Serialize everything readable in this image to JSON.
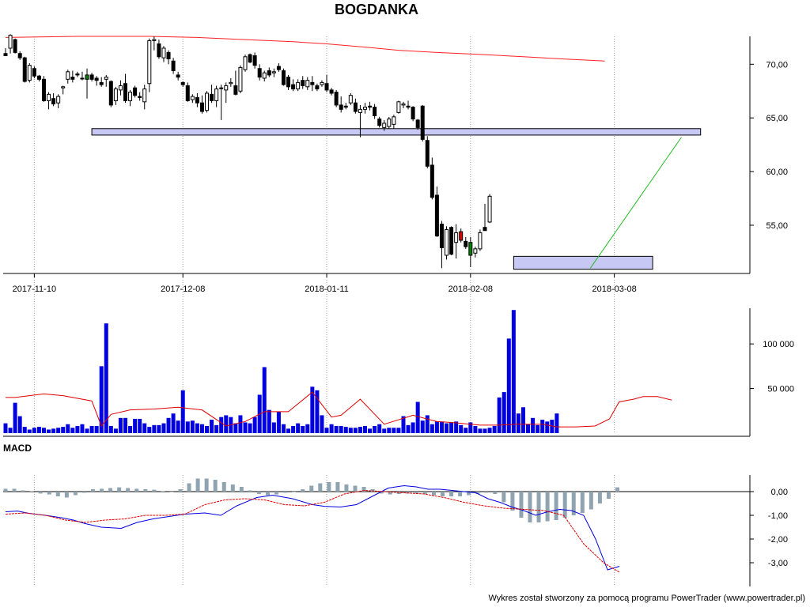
{
  "title": "BOGDANKA",
  "macd_label": "MACD",
  "footer": "Wykres został stworzony za pomocą programu PowerTrader (www.powertrader.pl)",
  "colors": {
    "up_body": "#ffffff",
    "down_body": "#000000",
    "red_candle": "#e00000",
    "green_candle": "#008000",
    "moving_average": "#ff2020",
    "volume_bar": "#0000e0",
    "volume_ma": "#e00000",
    "macd_line": "#0000e0",
    "signal_line": "#e00000",
    "histogram": "#8fa4b0",
    "zone_fill": "#c8c8f4",
    "trendline": "#22bb22"
  },
  "chart_data": [
    {
      "type": "candlestick",
      "name": "price",
      "x_tick_labels": [
        "2017-11-10",
        "2017-12-08",
        "2018-01-11",
        "2018-02-08",
        "2018-03-08"
      ],
      "x_tick_index": [
        6,
        37,
        67,
        97,
        127
      ],
      "y_tick_labels": [
        "70,00",
        "65,00",
        "60,00",
        "55,00"
      ],
      "y_ticks": [
        70,
        65,
        60,
        55
      ],
      "ylim": [
        50.8,
        72.6
      ],
      "grid": "vertical",
      "candles": [
        [
          71.0,
          71.5,
          70.8,
          70.8
        ],
        [
          71.5,
          72.8,
          71.0,
          72.7
        ],
        [
          72.3,
          72.4,
          71.0,
          71.1
        ],
        [
          71.0,
          71.2,
          70.4,
          70.6
        ],
        [
          70.6,
          70.7,
          68.3,
          68.4
        ],
        [
          68.5,
          70.1,
          68.3,
          69.9
        ],
        [
          69.6,
          69.8,
          68.7,
          68.9
        ],
        [
          68.9,
          69.0,
          68.4,
          68.6
        ],
        [
          68.6,
          68.9,
          66.5,
          66.6
        ],
        [
          66.6,
          67.4,
          65.8,
          67.2
        ],
        [
          66.8,
          67.3,
          66.1,
          66.3
        ],
        [
          66.4,
          67.2,
          65.9,
          67.0
        ],
        [
          67.8,
          68.0,
          67.2,
          67.9
        ],
        [
          68.6,
          69.5,
          68.2,
          69.3
        ],
        [
          68.8,
          69.4,
          68.3,
          68.6
        ],
        [
          69.1,
          69.3,
          68.8,
          69.0
        ],
        [
          68.7,
          69.3,
          68.5,
          68.7
        ],
        [
          68.6,
          69.6,
          66.8,
          69.0
        ],
        [
          69.0,
          69.2,
          68.4,
          68.6
        ],
        [
          68.7,
          68.9,
          68.0,
          68.5
        ],
        [
          68.3,
          68.8,
          67.9,
          68.1
        ],
        [
          68.6,
          69.0,
          67.9,
          68.8
        ],
        [
          68.4,
          68.5,
          66.0,
          66.2
        ],
        [
          66.6,
          67.9,
          66.2,
          67.7
        ],
        [
          67.6,
          68.5,
          67.1,
          68.0
        ],
        [
          68.2,
          69.1,
          66.4,
          66.6
        ],
        [
          66.6,
          67.6,
          66.1,
          67.4
        ],
        [
          67.8,
          68.0,
          66.9,
          67.1
        ],
        [
          67.0,
          67.4,
          66.6,
          66.9
        ],
        [
          66.5,
          68.1,
          65.8,
          67.7
        ],
        [
          68.2,
          72.4,
          67.4,
          72.2
        ],
        [
          72.2,
          72.6,
          71.3,
          72.3
        ],
        [
          71.9,
          72.3,
          70.5,
          70.7
        ],
        [
          70.6,
          71.7,
          70.2,
          71.5
        ],
        [
          71.1,
          71.3,
          70.0,
          70.5
        ],
        [
          70.3,
          70.6,
          69.1,
          69.4
        ],
        [
          69.0,
          69.3,
          68.5,
          68.8
        ],
        [
          68.3,
          68.4,
          67.9,
          68.1
        ],
        [
          68.0,
          68.3,
          66.5,
          66.6
        ],
        [
          66.7,
          67.2,
          66.4,
          67.0
        ],
        [
          66.9,
          67.3,
          66.0,
          66.4
        ],
        [
          66.4,
          67.1,
          65.4,
          65.6
        ],
        [
          65.7,
          67.5,
          65.5,
          67.3
        ],
        [
          67.2,
          68.1,
          66.4,
          66.6
        ],
        [
          66.6,
          68.0,
          66.0,
          67.7
        ],
        [
          67.8,
          68.1,
          64.8,
          67.8
        ],
        [
          67.6,
          68.3,
          66.4,
          68.0
        ],
        [
          68.2,
          68.7,
          67.9,
          68.3
        ],
        [
          68.0,
          69.4,
          67.1,
          67.2
        ],
        [
          67.5,
          69.9,
          67.3,
          69.7
        ],
        [
          69.5,
          70.9,
          69.3,
          70.7
        ],
        [
          70.9,
          71.0,
          70.1,
          70.2
        ],
        [
          70.8,
          71.1,
          69.6,
          69.9
        ],
        [
          69.6,
          70.0,
          68.5,
          68.8
        ],
        [
          68.7,
          69.4,
          68.4,
          69.2
        ],
        [
          69.4,
          69.7,
          68.8,
          69.0
        ],
        [
          69.2,
          69.6,
          68.8,
          69.3
        ],
        [
          69.8,
          70.1,
          69.3,
          69.5
        ],
        [
          69.4,
          69.6,
          68.0,
          68.1
        ],
        [
          68.8,
          69.0,
          67.6,
          67.9
        ],
        [
          68.1,
          68.6,
          67.5,
          67.7
        ],
        [
          67.7,
          68.6,
          67.5,
          68.3
        ],
        [
          68.5,
          68.9,
          67.7,
          68.0
        ],
        [
          67.9,
          68.8,
          67.6,
          68.5
        ],
        [
          68.3,
          68.9,
          67.5,
          68.1
        ],
        [
          68.0,
          68.2,
          67.5,
          67.7
        ],
        [
          68.1,
          68.5,
          67.9,
          68.3
        ],
        [
          68.2,
          69.0,
          67.4,
          67.6
        ],
        [
          67.6,
          67.8,
          67.1,
          67.3
        ],
        [
          67.4,
          67.6,
          66.0,
          66.2
        ],
        [
          66.2,
          67.0,
          65.5,
          65.8
        ],
        [
          66.1,
          66.4,
          65.8,
          66.0
        ],
        [
          66.4,
          67.3,
          66.2,
          67.1
        ],
        [
          66.4,
          66.8,
          65.4,
          65.6
        ],
        [
          65.5,
          66.2,
          63.2,
          65.8
        ],
        [
          65.8,
          66.4,
          65.4,
          66.0
        ],
        [
          66.1,
          66.5,
          65.7,
          66.0
        ],
        [
          66.0,
          66.3,
          64.9,
          65.2
        ],
        [
          64.9,
          65.1,
          64.1,
          64.3
        ],
        [
          64.1,
          64.8,
          63.8,
          64.5
        ],
        [
          64.2,
          65.1,
          64.0,
          64.9
        ],
        [
          64.4,
          65.3,
          64.0,
          65.1
        ],
        [
          65.5,
          66.6,
          65.4,
          66.5
        ],
        [
          66.2,
          66.5,
          65.9,
          66.3
        ],
        [
          66.1,
          66.6,
          65.8,
          66.0
        ],
        [
          66.0,
          66.1,
          64.7,
          64.9
        ],
        [
          64.8,
          64.9,
          63.9,
          64.1
        ],
        [
          66.1,
          66.2,
          62.8,
          63.0
        ],
        [
          62.9,
          63.3,
          60.3,
          60.5
        ],
        [
          60.6,
          61.3,
          57.4,
          57.6
        ],
        [
          57.8,
          58.6,
          53.9,
          54.0
        ],
        [
          55.1,
          55.4,
          51.0,
          52.9
        ],
        [
          52.2,
          54.9,
          51.8,
          54.6
        ],
        [
          54.8,
          54.9,
          52.2,
          52.3
        ],
        [
          53.4,
          55.1,
          51.9,
          54.3
        ],
        [
          54.4,
          54.7,
          53.4,
          53.6
        ],
        [
          53.5,
          53.9,
          52.8,
          53.0
        ],
        [
          53.4,
          53.9,
          51.1,
          52.2
        ],
        [
          52.4,
          53.0,
          52.0,
          52.8
        ],
        [
          52.8,
          54.6,
          52.6,
          54.3
        ],
        [
          54.8,
          57.0,
          54.5,
          54.5
        ],
        [
          55.3,
          57.9,
          55.2,
          57.7
        ]
      ],
      "moving_average": [
        72.5,
        72.6,
        72.6,
        72.5,
        72.3,
        72.1,
        71.9,
        71.6,
        71.3,
        71.1,
        70.9,
        70.7,
        70.5,
        70.3
      ],
      "ma_index": [
        0,
        15,
        30,
        40,
        50,
        60,
        67,
        75,
        82,
        90,
        100,
        108,
        116,
        125
      ],
      "support_zones": [
        {
          "from_index": 18,
          "to_index": 145,
          "low": 63.4,
          "high": 64.0
        },
        {
          "from_index": 106,
          "to_index": 135,
          "low": 50.9,
          "high": 52.1
        }
      ],
      "trendline": {
        "x": [
          122,
          141
        ],
        "y": [
          51.0,
          63.2
        ]
      }
    },
    {
      "type": "bar",
      "name": "volume",
      "y_tick_labels": [
        "100 000",
        "50 000"
      ],
      "y_ticks": [
        100000,
        50000
      ],
      "ylim": [
        0,
        140000
      ],
      "values": [
        11000,
        6000,
        34000,
        19000,
        7000,
        4000,
        6000,
        7000,
        6000,
        4000,
        5000,
        6000,
        7000,
        10000,
        6000,
        8000,
        10000,
        5000,
        8000,
        8000,
        75000,
        123000,
        8000,
        5000,
        17000,
        17000,
        8000,
        16000,
        16000,
        11000,
        7000,
        9000,
        9000,
        11000,
        17000,
        22000,
        14000,
        48000,
        13000,
        14000,
        11000,
        10000,
        8000,
        15000,
        9000,
        18000,
        20000,
        18000,
        11000,
        20000,
        12000,
        11000,
        18000,
        43000,
        74000,
        26000,
        12000,
        24000,
        10000,
        5000,
        8000,
        11000,
        8000,
        10000,
        52000,
        48000,
        20000,
        6000,
        10000,
        8000,
        8000,
        7000,
        6000,
        6000,
        7000,
        8000,
        5000,
        8000,
        10000,
        5000,
        6000,
        6000,
        6000,
        19000,
        9000,
        12000,
        35000,
        14000,
        20000,
        10000,
        13000,
        13000,
        11000,
        12000,
        13000,
        9000,
        6000,
        12000,
        8000,
        5000,
        5000,
        6000,
        8000,
        40000,
        46000,
        106000,
        138000,
        22000,
        29000,
        10000,
        17000,
        9000,
        15000,
        13000,
        15000,
        22000
      ],
      "moving_average": [
        40000,
        40000,
        44000,
        42000,
        36000,
        8000,
        21000,
        26000,
        27000,
        29000,
        26000,
        8000,
        13000,
        24000,
        24000,
        46000,
        18000,
        20000,
        38000,
        10000,
        20000,
        13000,
        12000,
        9000,
        9000,
        10000,
        10000,
        7000,
        7000,
        8000,
        16000,
        35000,
        38000,
        41000,
        41000,
        37000
      ],
      "ma_index": [
        0,
        2,
        8,
        12,
        18,
        20,
        22,
        26,
        31,
        36,
        41,
        46,
        50,
        54,
        59,
        64,
        68,
        70,
        74,
        79,
        85,
        90,
        93,
        99,
        103,
        107,
        112,
        115,
        119,
        123,
        126,
        128,
        131,
        133,
        136,
        139
      ]
    },
    {
      "type": "line",
      "name": "MACD",
      "y_tick_labels": [
        "0,00",
        "-1,00",
        "-2,00",
        "-3,00"
      ],
      "y_ticks": [
        0,
        -1,
        -2,
        -3
      ],
      "ylim": [
        -4.0,
        0.7
      ],
      "series": [
        {
          "role": "macd",
          "index": [
            0,
            3,
            6,
            10,
            14,
            17,
            20,
            24,
            29,
            33,
            37,
            41,
            45,
            50,
            54,
            58,
            63,
            67,
            72,
            77,
            80,
            84,
            88,
            92,
            96,
            100,
            103,
            106,
            109,
            112,
            115,
            118,
            121,
            124,
            127,
            130,
            133,
            136,
            139,
            142,
            145,
            148,
            151,
            154
          ],
          "values": [
            -0.85,
            -0.82,
            -0.92,
            -1.0,
            -1.1,
            -1.2,
            -1.35,
            -1.5,
            -1.55,
            -1.3,
            -1.15,
            -1.05,
            -0.95,
            -0.9,
            -1.0,
            -0.6,
            -0.25,
            -0.15,
            -0.3,
            -0.55,
            -0.62,
            -0.65,
            -0.55,
            -0.2,
            0.15,
            0.25,
            0.2,
            0.1,
            0.1,
            0.05,
            0.0,
            -0.05,
            -0.3,
            -0.45,
            -0.65,
            -0.8,
            -1.0,
            -0.85,
            -0.75,
            -0.8,
            -1.0,
            -2.0,
            -3.3,
            -3.15
          ]
        },
        {
          "role": "signal",
          "index": [
            0,
            5,
            10,
            15,
            20,
            25,
            30,
            35,
            40,
            45,
            50,
            55,
            60,
            65,
            70,
            75,
            80,
            85,
            90,
            95,
            100,
            105,
            110,
            115,
            120,
            125,
            130,
            135,
            140,
            145,
            150,
            154
          ],
          "values": [
            -0.95,
            -0.9,
            -1.0,
            -1.2,
            -1.3,
            -1.2,
            -1.15,
            -1.0,
            -1.0,
            -0.95,
            -0.55,
            -0.35,
            -0.3,
            -0.35,
            -0.55,
            -0.6,
            -0.45,
            -0.1,
            0.05,
            0.0,
            -0.05,
            -0.1,
            -0.25,
            -0.45,
            -0.6,
            -0.7,
            -0.75,
            -0.8,
            -1.0,
            -2.2,
            -3.0,
            -3.4
          ]
        }
      ],
      "histogram": [
        0.12,
        0.12,
        0.05,
        0.02,
        -0.08,
        -0.12,
        -0.2,
        -0.25,
        -0.15,
        -0.05,
        0.1,
        0.12,
        0.15,
        0.18,
        0.15,
        0.12,
        0.1,
        0.08,
        0.02,
        -0.02,
        0.1,
        0.35,
        0.55,
        0.55,
        0.5,
        0.4,
        0.3,
        0.2,
        0.05,
        -0.1,
        -0.15,
        -0.12,
        -0.05,
        -0.02,
        0.1,
        0.25,
        0.35,
        0.4,
        0.4,
        0.3,
        0.25,
        0.2,
        0.1,
        -0.08,
        -0.12,
        -0.1,
        -0.08,
        -0.08,
        -0.1,
        -0.15,
        -0.2,
        -0.2,
        -0.2,
        -0.15,
        -0.1,
        -0.05,
        -0.1,
        -0.45,
        -0.8,
        -1.1,
        -1.3,
        -1.3,
        -1.25,
        -1.2,
        -1.1,
        -1.0,
        -0.9,
        -0.75,
        -0.5,
        -0.3,
        0.18
      ]
    }
  ]
}
